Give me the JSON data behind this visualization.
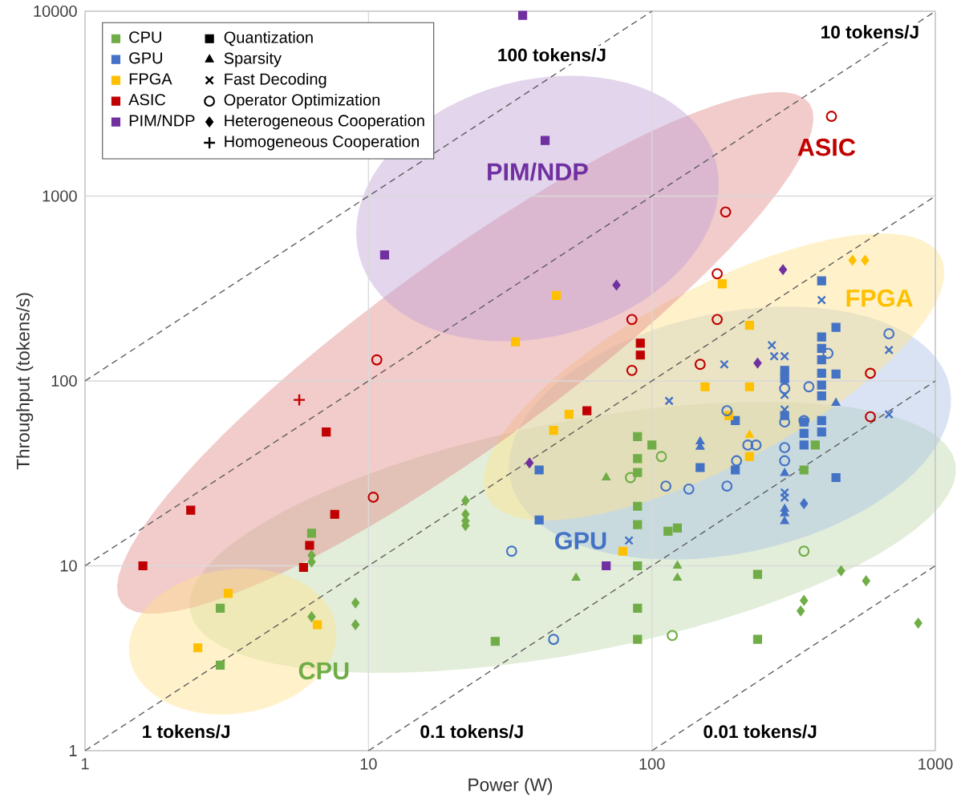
{
  "chart_data": {
    "type": "scatter",
    "xlabel": "Power (W)",
    "ylabel": "Throughput (tokens/s)",
    "log": "xy",
    "xlim": [
      1,
      1000
    ],
    "ylim": [
      1,
      10000
    ],
    "xticks": [
      1,
      10,
      100,
      1000
    ],
    "yticks": [
      1,
      10,
      100,
      1000,
      10000
    ],
    "grid": true,
    "legend": "top left",
    "annotations": [
      "CPU",
      "GPU",
      "FPGA",
      "ASIC",
      "PIM/NDP"
    ],
    "series": [
      {
        "name": "CPU",
        "color": "#70ad47",
        "marker": "square",
        "x": [
          6.3,
          3,
          3,
          28,
          89,
          89,
          89,
          89,
          89,
          89,
          89,
          89,
          100,
          114,
          123,
          236,
          236,
          377,
          344
        ],
        "values": [
          15,
          5.9,
          2.9,
          3.9,
          50,
          38,
          32,
          21,
          16.7,
          10,
          5.9,
          4,
          45,
          15.4,
          16,
          9,
          4,
          45,
          33
        ]
      },
      {
        "name": "GPU",
        "color": "#4472c4",
        "marker": "square",
        "x": [
          40,
          40,
          294,
          294,
          294,
          344,
          344,
          344,
          397,
          397,
          397,
          397,
          397,
          397,
          397,
          397,
          397,
          446,
          446,
          446,
          197,
          197,
          148
        ],
        "values": [
          33,
          17.7,
          114,
          103,
          65,
          60,
          52,
          45,
          348,
          173,
          150,
          130,
          110,
          95,
          83,
          61,
          53,
          195,
          109,
          30,
          61,
          33,
          34
        ]
      },
      {
        "name": "FPGA",
        "color": "#ffc000",
        "marker": "square",
        "x": [
          177,
          221,
          154,
          221,
          187,
          221,
          46,
          33,
          51,
          45,
          79,
          3.2,
          6.6,
          2.5
        ],
        "values": [
          335,
          200,
          93,
          93,
          65,
          39,
          290,
          163,
          66,
          54,
          12,
          7.1,
          4.8,
          3.6
        ]
      },
      {
        "name": "ASIC",
        "color": "#c00000",
        "marker": "square",
        "x": [
          91,
          91,
          59,
          7.1,
          2.36,
          7.6,
          6.2,
          5.9,
          1.6
        ],
        "values": [
          160,
          138,
          69,
          53,
          20,
          19,
          12.9,
          9.8,
          10
        ]
      },
      {
        "name": "PIM/NDP",
        "color": "#7030a0",
        "marker": "square",
        "x": [
          35,
          42,
          11.4,
          69
        ],
        "values": [
          9500,
          2000,
          480,
          10
        ]
      },
      {
        "name": "Quantization",
        "color": "#000000",
        "marker": "square"
      },
      {
        "name": "Sparsity",
        "color": "#000000",
        "marker": "triangle"
      },
      {
        "name": "Fast Decoding",
        "color": "#000000",
        "marker": "cross"
      },
      {
        "name": "Operator Optimization",
        "color": "#000000",
        "marker": "circle"
      },
      {
        "name": "Heterogeneous Cooperation",
        "color": "#000000",
        "marker": "diamond"
      },
      {
        "name": "Homogeneous Cooperation",
        "color": "#000000",
        "marker": "plus"
      },
      {
        "color": "#70ad47",
        "marker": "diamond",
        "x": [
          6.3,
          6.3,
          6.3,
          9,
          9,
          22,
          22,
          22,
          22,
          465,
          570,
          344,
          335,
          870
        ],
        "values": [
          11.4,
          10.5,
          5.3,
          6.3,
          4.8,
          22.5,
          19,
          17.5,
          16.5,
          9.4,
          8.3,
          6.5,
          5.7,
          4.9
        ]
      },
      {
        "color": "#70ad47",
        "marker": "triangle",
        "x": [
          54,
          69,
          123,
          123
        ],
        "values": [
          8.6,
          30,
          10,
          8.6
        ]
      },
      {
        "color": "#70ad47",
        "marker": "circle",
        "x": [
          118,
          344,
          108,
          84
        ],
        "values": [
          4.2,
          12,
          39,
          30
        ]
      },
      {
        "color": "#4472c4",
        "marker": "triangle",
        "x": [
          294,
          294,
          294,
          294,
          446,
          148,
          148
        ],
        "values": [
          31.7,
          20.3,
          19.2,
          17.4,
          76,
          47,
          44
        ]
      },
      {
        "color": "#4472c4",
        "marker": "cross",
        "x": [
          83,
          115,
          180,
          265,
          270,
          294,
          294,
          294,
          294,
          294,
          294,
          397,
          686,
          686
        ],
        "values": [
          13.7,
          78,
          123,
          156,
          136,
          136,
          99,
          84,
          70,
          24.9,
          23.4,
          274,
          147,
          66
        ]
      },
      {
        "color": "#4472c4",
        "marker": "circle",
        "x": [
          32,
          45,
          112,
          294,
          294,
          294,
          294,
          344,
          418,
          686,
          184,
          184,
          135,
          199,
          218,
          233,
          358
        ],
        "values": [
          12,
          4,
          27,
          91,
          60,
          43.6,
          37,
          61,
          141,
          180,
          69,
          27,
          26,
          37,
          45,
          45,
          93
        ]
      },
      {
        "color": "#4472c4",
        "marker": "diamond",
        "x": [
          344
        ],
        "values": [
          21.7
        ]
      },
      {
        "color": "#ffc000",
        "marker": "triangle",
        "x": [
          221
        ],
        "values": [
          51
        ]
      },
      {
        "color": "#ffc000",
        "marker": "diamond",
        "x": [
          510,
          565
        ],
        "values": [
          450,
          450
        ]
      },
      {
        "color": "#c00000",
        "marker": "circle",
        "x": [
          430,
          182,
          170,
          170,
          148,
          590,
          590,
          85,
          85,
          10.7,
          10.4
        ],
        "values": [
          2700,
          820,
          380,
          215,
          123,
          110,
          64,
          215,
          114,
          130,
          23.5
        ]
      },
      {
        "color": "#c00000",
        "marker": "plus",
        "x": [
          5.7
        ],
        "values": [
          79
        ]
      },
      {
        "color": "#7030a0",
        "marker": "diamond",
        "x": [
          75,
          37,
          290,
          236
        ],
        "values": [
          330,
          36,
          400,
          125
        ]
      },
      {
        "name": "100 tokens/J",
        "type": "line",
        "color": "#595959",
        "line_style": "dashed",
        "marker": "none",
        "x": [
          1,
          100
        ],
        "values": [
          100,
          10000
        ]
      },
      {
        "name": "10 tokens/J",
        "type": "line",
        "color": "#595959",
        "line_style": "dashed",
        "marker": "none",
        "x": [
          1,
          1000
        ],
        "values": [
          10,
          10000
        ]
      },
      {
        "name": "1 tokens/J",
        "type": "line",
        "color": "#595959",
        "line_style": "dashed",
        "marker": "none",
        "x": [
          1,
          1000
        ],
        "values": [
          1,
          1000
        ]
      },
      {
        "name": "0.1 tokens/J",
        "type": "line",
        "color": "#595959",
        "line_style": "dashed",
        "marker": "none",
        "x": [
          10,
          1000
        ],
        "values": [
          1,
          100
        ]
      },
      {
        "name": "0.01 tokens/J",
        "type": "line",
        "color": "#595959",
        "line_style": "dashed",
        "marker": "none",
        "x": [
          100,
          1000
        ],
        "values": [
          1,
          10
        ]
      }
    ]
  }
}
